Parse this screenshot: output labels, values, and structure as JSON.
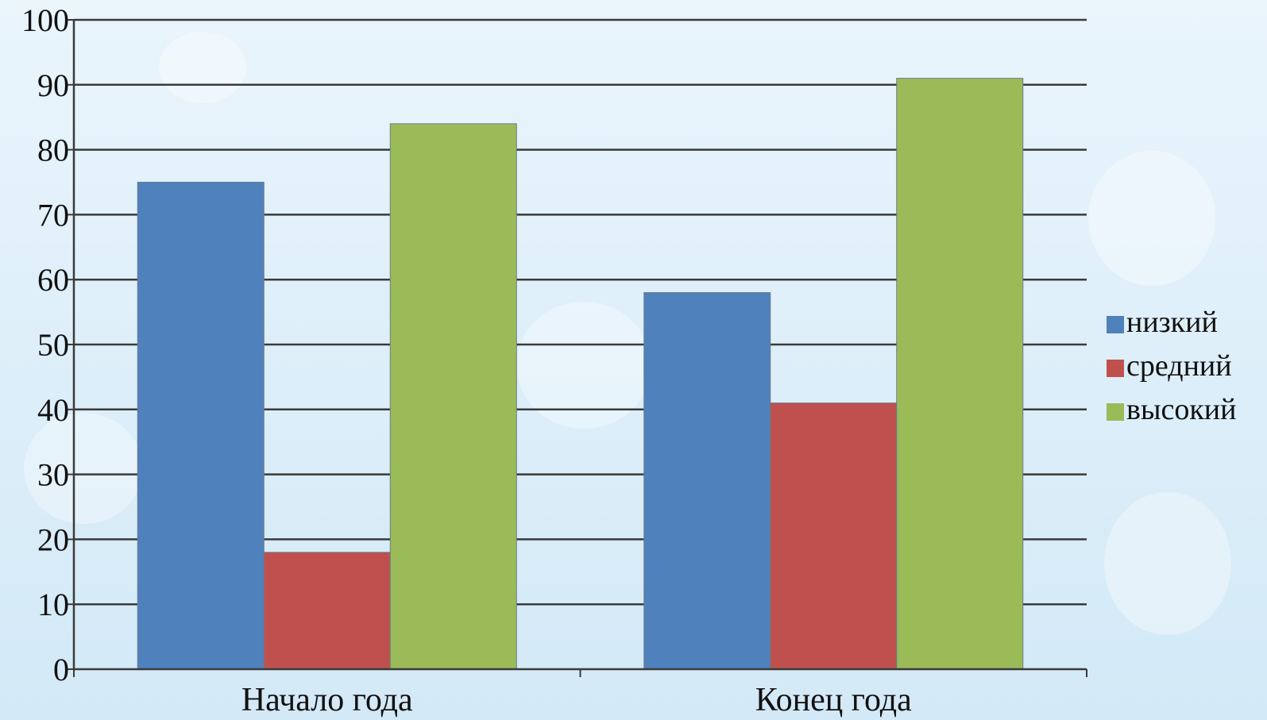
{
  "chart_data": {
    "type": "bar",
    "categories": [
      "Начало года",
      "Конец года"
    ],
    "series": [
      {
        "name": "низкий",
        "values": [
          75,
          58
        ],
        "color": "#4f81bd"
      },
      {
        "name": "средний",
        "values": [
          18,
          41
        ],
        "color": "#c0504d"
      },
      {
        "name": "высокий",
        "values": [
          84,
          91
        ],
        "color": "#9bbb59"
      }
    ],
    "ylim": [
      0,
      100
    ],
    "yticks": [
      0,
      10,
      20,
      30,
      40,
      50,
      60,
      70,
      80,
      90,
      100
    ],
    "grid": true,
    "legend": "right"
  }
}
